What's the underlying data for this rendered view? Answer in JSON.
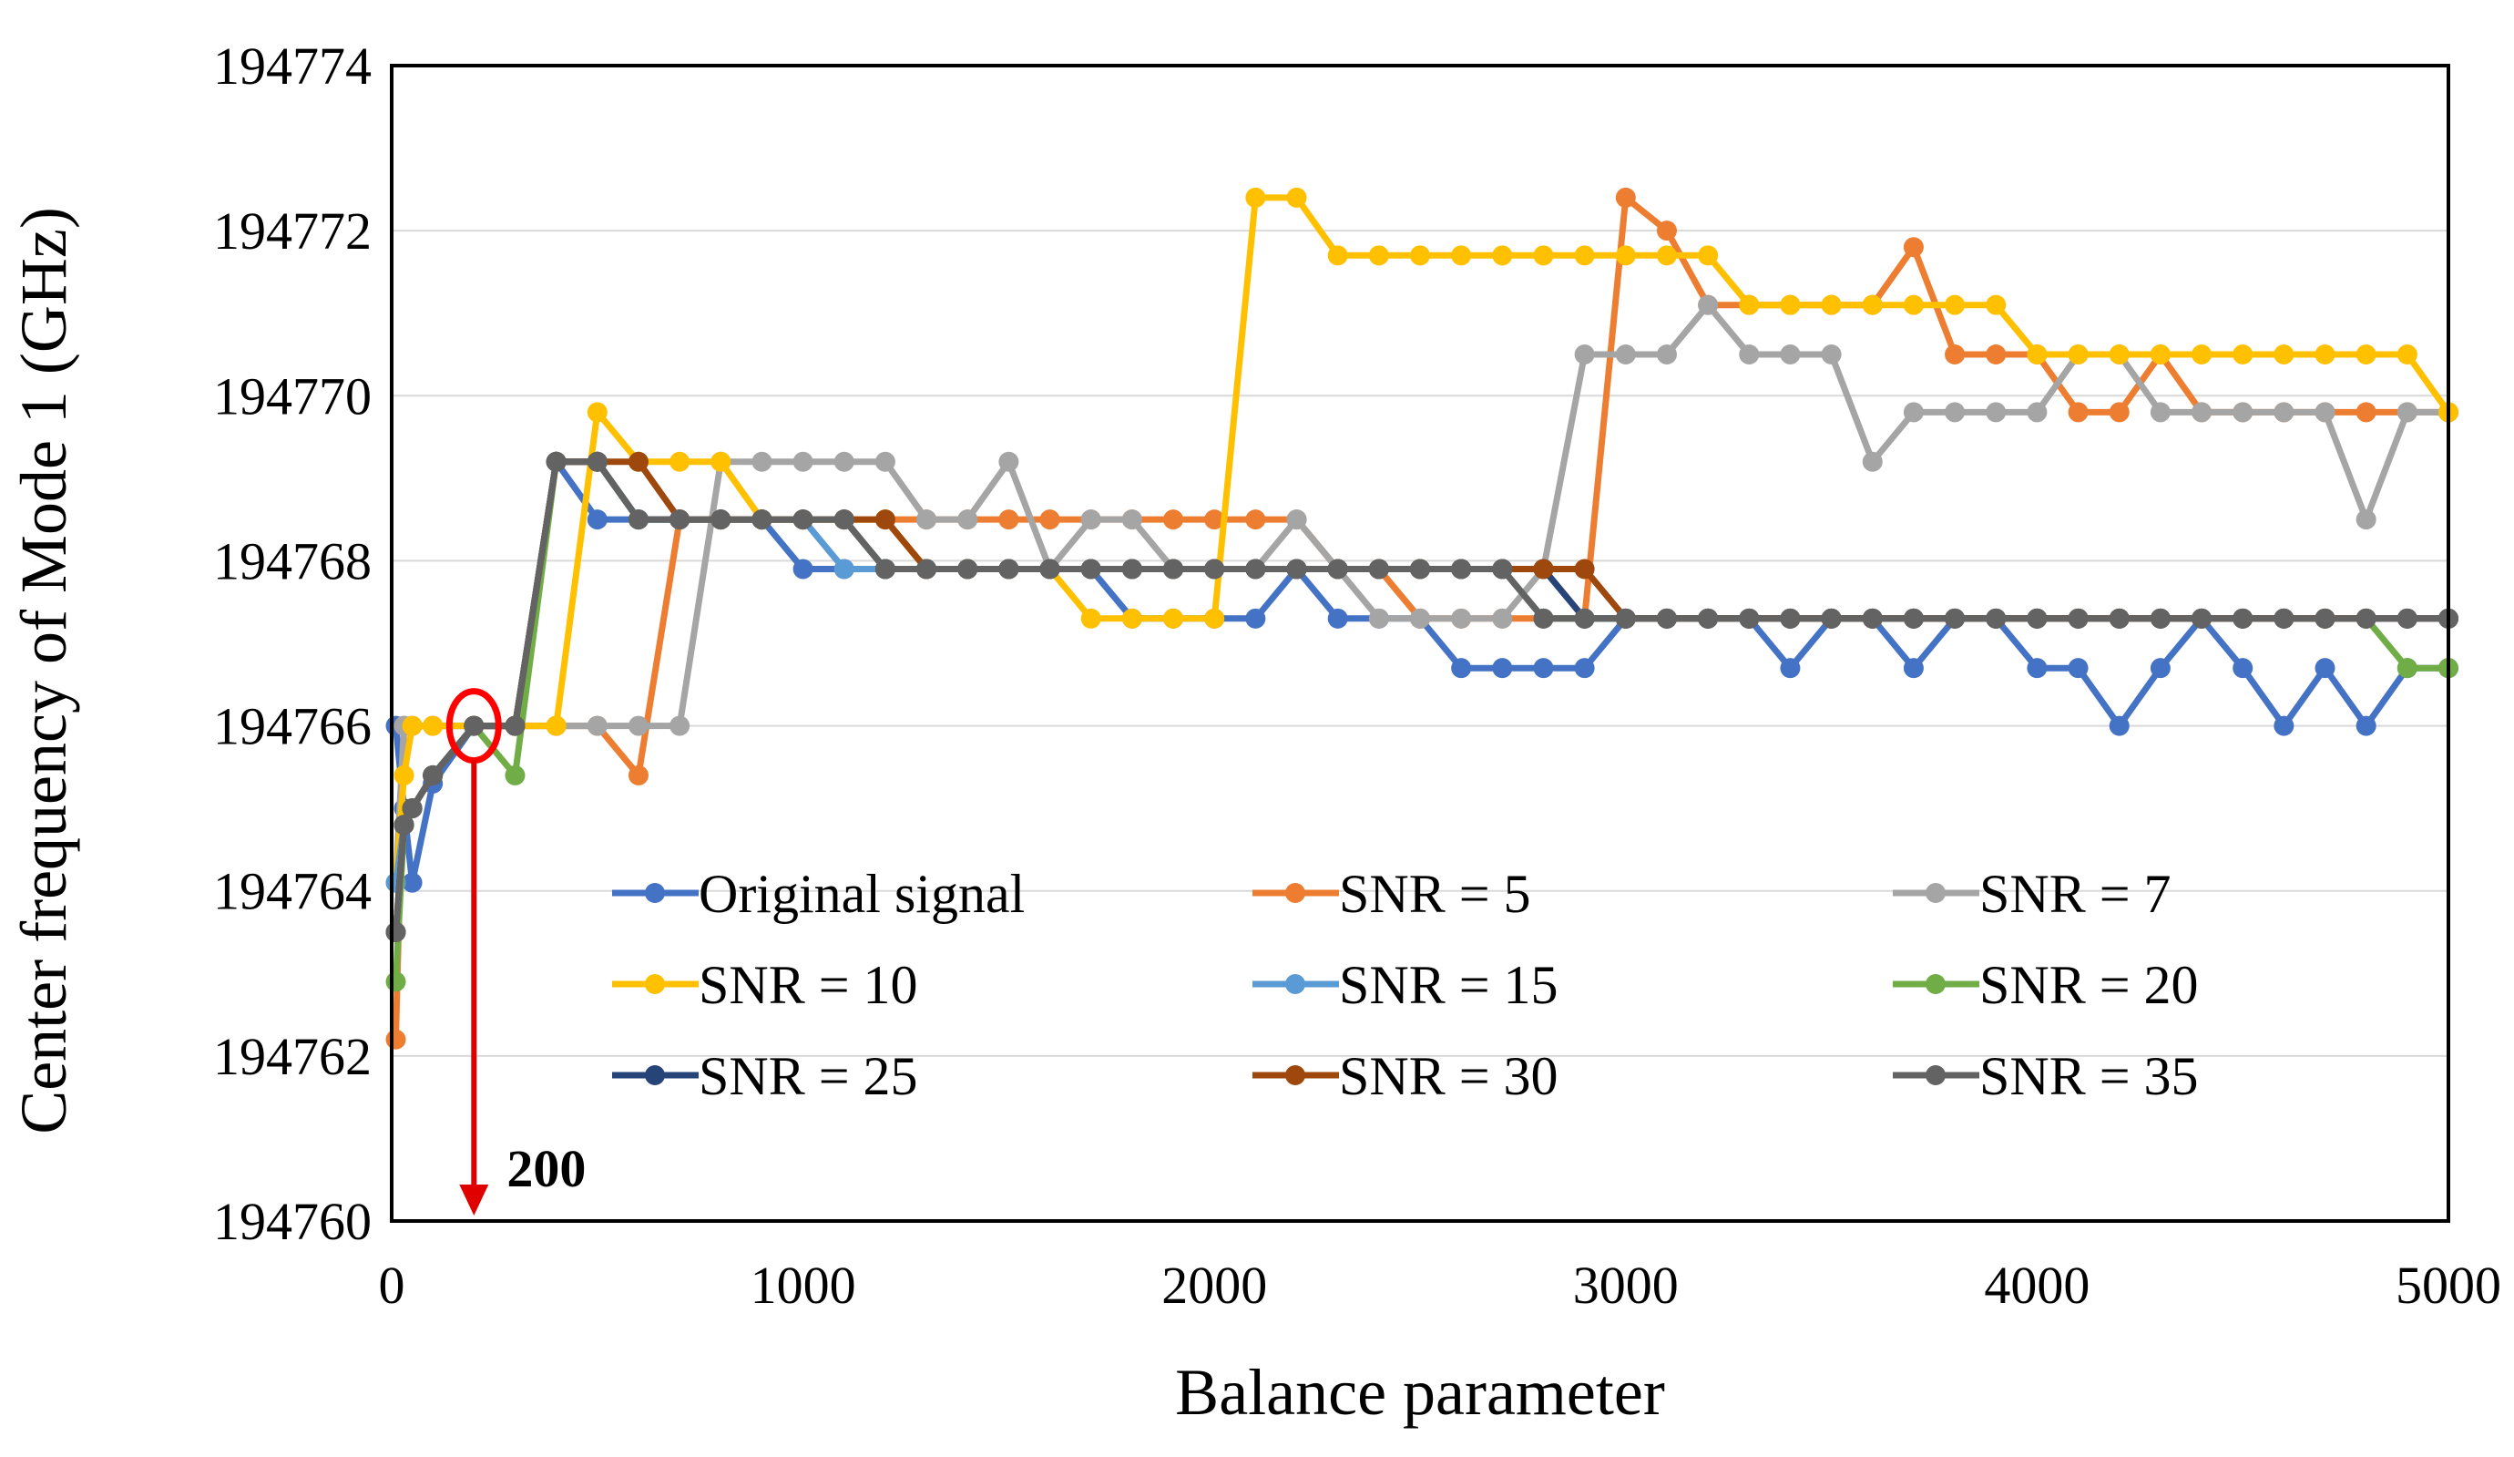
{
  "chart_data": {
    "type": "line",
    "title": "",
    "xlabel": "Balance parameter",
    "ylabel": "Center frequency of Mode 1 (GHz)",
    "xlim": [
      0,
      5000
    ],
    "ylim": [
      194760,
      194774
    ],
    "xticks": [
      0,
      1000,
      2000,
      3000,
      4000,
      5000
    ],
    "yticks": [
      194760,
      194762,
      194764,
      194766,
      194768,
      194770,
      194772,
      194774
    ],
    "grid": "horizontal",
    "legend_position": "inside-lower",
    "annotation": {
      "label": "200",
      "x": 200,
      "y": 194766
    },
    "series": [
      {
        "name": "Original signal",
        "color": "#4472C4",
        "x": [
          10,
          30,
          50,
          100,
          200,
          300,
          400,
          500,
          600,
          700,
          800,
          900,
          1000,
          1100,
          1200,
          1300,
          1400,
          1500,
          1600,
          1700,
          1800,
          1900,
          2000,
          2100,
          2200,
          2300,
          2400,
          2500,
          2600,
          2700,
          2800,
          2900,
          3000,
          3100,
          3200,
          3300,
          3400,
          3500,
          3600,
          3700,
          3800,
          3900,
          4000,
          4100,
          4200,
          4300,
          4400,
          4500,
          4600,
          4700,
          4800,
          4900,
          5000
        ],
        "y": [
          194766.0,
          194765.0,
          194764.1,
          194765.3,
          194766.0,
          194766.0,
          194769.2,
          194768.5,
          194768.5,
          194768.5,
          194768.5,
          194768.5,
          194767.9,
          194767.9,
          194767.9,
          194767.9,
          194767.9,
          194767.9,
          194767.9,
          194767.9,
          194767.3,
          194767.3,
          194767.3,
          194767.3,
          194767.9,
          194767.3,
          194767.3,
          194767.3,
          194766.7,
          194766.7,
          194766.7,
          194766.7,
          194767.3,
          194767.3,
          194767.3,
          194767.3,
          194766.7,
          194767.3,
          194767.3,
          194766.7,
          194767.3,
          194767.3,
          194766.7,
          194766.7,
          194766.0,
          194766.7,
          194767.3,
          194766.7,
          194766.0,
          194766.7,
          194766.0,
          194766.7,
          194766.7
        ]
      },
      {
        "name": "SNR = 5",
        "color": "#ED7D31",
        "x": [
          10,
          30,
          50,
          100,
          200,
          300,
          400,
          500,
          600,
          700,
          800,
          900,
          1000,
          1100,
          1200,
          1300,
          1400,
          1500,
          1600,
          1700,
          1800,
          1900,
          2000,
          2100,
          2200,
          2300,
          2400,
          2500,
          2600,
          2700,
          2800,
          2900,
          3000,
          3100,
          3200,
          3300,
          3400,
          3500,
          3600,
          3700,
          3800,
          3900,
          4000,
          4100,
          4200,
          4300,
          4400,
          4500,
          4600,
          4700,
          4800,
          4900,
          5000
        ],
        "y": [
          194762.2,
          194766.0,
          194766.0,
          194766.0,
          194766.0,
          194766.0,
          194766.0,
          194766.0,
          194765.4,
          194768.5,
          194768.5,
          194768.5,
          194768.5,
          194768.5,
          194768.5,
          194768.5,
          194768.5,
          194768.5,
          194768.5,
          194768.5,
          194768.5,
          194768.5,
          194768.5,
          194768.5,
          194768.5,
          194767.9,
          194767.9,
          194767.3,
          194767.3,
          194767.3,
          194767.3,
          194767.3,
          194772.4,
          194772.0,
          194771.1,
          194771.1,
          194771.1,
          194771.1,
          194771.1,
          194771.8,
          194770.5,
          194770.5,
          194770.5,
          194769.8,
          194769.8,
          194770.5,
          194769.8,
          194769.8,
          194769.8,
          194769.8,
          194769.8,
          194769.8,
          194769.8
        ]
      },
      {
        "name": "SNR = 7",
        "color": "#A5A5A5",
        "x": [
          10,
          30,
          50,
          100,
          200,
          300,
          400,
          500,
          600,
          700,
          800,
          900,
          1000,
          1100,
          1200,
          1300,
          1400,
          1500,
          1600,
          1700,
          1800,
          1900,
          2000,
          2100,
          2200,
          2300,
          2400,
          2500,
          2600,
          2700,
          2800,
          2900,
          3000,
          3100,
          3200,
          3300,
          3400,
          3500,
          3600,
          3700,
          3800,
          3900,
          4000,
          4100,
          4200,
          4300,
          4400,
          4500,
          4600,
          4700,
          4800,
          4900,
          5000
        ],
        "y": [
          194764.1,
          194766.0,
          194766.0,
          194766.0,
          194766.0,
          194766.0,
          194766.0,
          194766.0,
          194766.0,
          194766.0,
          194769.2,
          194769.2,
          194769.2,
          194769.2,
          194769.2,
          194768.5,
          194768.5,
          194769.2,
          194767.9,
          194768.5,
          194768.5,
          194767.9,
          194767.9,
          194767.9,
          194768.5,
          194767.9,
          194767.3,
          194767.3,
          194767.3,
          194767.3,
          194767.9,
          194770.5,
          194770.5,
          194770.5,
          194771.1,
          194770.5,
          194770.5,
          194770.5,
          194769.2,
          194769.8,
          194769.8,
          194769.8,
          194769.8,
          194770.5,
          194770.5,
          194769.8,
          194769.8,
          194769.8,
          194769.8,
          194769.8,
          194768.5,
          194769.8,
          194769.8
        ]
      },
      {
        "name": "SNR = 10",
        "color": "#FFC000",
        "x": [
          10,
          30,
          50,
          100,
          200,
          300,
          400,
          500,
          600,
          700,
          800,
          900,
          1000,
          1100,
          1200,
          1300,
          1400,
          1500,
          1600,
          1700,
          1800,
          1900,
          2000,
          2100,
          2200,
          2300,
          2400,
          2500,
          2600,
          2700,
          2800,
          2900,
          3000,
          3100,
          3200,
          3300,
          3400,
          3500,
          3600,
          3700,
          3800,
          3900,
          4000,
          4100,
          4200,
          4300,
          4400,
          4500,
          4600,
          4700,
          4800,
          4900,
          5000
        ],
        "y": [
          194764.1,
          194765.4,
          194766.0,
          194766.0,
          194766.0,
          194766.0,
          194766.0,
          194769.8,
          194769.2,
          194769.2,
          194769.2,
          194768.5,
          194768.5,
          194768.5,
          194768.5,
          194767.9,
          194767.9,
          194767.9,
          194767.9,
          194767.3,
          194767.3,
          194767.3,
          194767.3,
          194772.4,
          194772.4,
          194771.7,
          194771.7,
          194771.7,
          194771.7,
          194771.7,
          194771.7,
          194771.7,
          194771.7,
          194771.7,
          194771.7,
          194771.1,
          194771.1,
          194771.1,
          194771.1,
          194771.1,
          194771.1,
          194771.1,
          194770.5,
          194770.5,
          194770.5,
          194770.5,
          194770.5,
          194770.5,
          194770.5,
          194770.5,
          194770.5,
          194770.5,
          194769.8
        ]
      },
      {
        "name": "SNR = 15",
        "color": "#5B9BD5",
        "x": [
          10,
          30,
          50,
          100,
          200,
          300,
          400,
          500,
          600,
          700,
          800,
          900,
          1000,
          1100,
          1200,
          1300,
          1400,
          1500,
          1600,
          1700,
          1800,
          1900,
          2000,
          2100,
          2200,
          2300,
          2400,
          2500,
          2600,
          2700,
          2800,
          2900,
          3000,
          3100,
          3200,
          3300,
          3400,
          3500,
          3600,
          3700,
          3800,
          3900,
          4000,
          4100,
          4200,
          4300,
          4400,
          4500,
          4600,
          4700,
          4800,
          4900,
          5000
        ],
        "y": [
          194764.1,
          194764.8,
          194765.0,
          194765.4,
          194766.0,
          194766.0,
          194769.2,
          194769.2,
          194768.5,
          194768.5,
          194768.5,
          194768.5,
          194768.5,
          194767.9,
          194767.9,
          194767.9,
          194767.9,
          194767.9,
          194767.9,
          194767.9,
          194767.9,
          194767.9,
          194767.9,
          194767.9,
          194767.9,
          194767.9,
          194767.9,
          194767.9,
          194767.9,
          194767.9,
          194767.3,
          194767.3,
          194767.3,
          194767.3,
          194767.3,
          194767.3,
          194767.3,
          194767.3,
          194767.3,
          194767.3,
          194767.3,
          194767.3,
          194767.3,
          194767.3,
          194767.3,
          194767.3,
          194767.3,
          194767.3,
          194767.3,
          194767.3,
          194767.3,
          194767.3,
          194767.3
        ]
      },
      {
        "name": "SNR = 20",
        "color": "#70AD47",
        "x": [
          10,
          30,
          50,
          100,
          200,
          300,
          400,
          500,
          600,
          700,
          800,
          900,
          1000,
          1100,
          1200,
          1300,
          1400,
          1500,
          1600,
          1700,
          1800,
          1900,
          2000,
          2100,
          2200,
          2300,
          2400,
          2500,
          2600,
          2700,
          2800,
          2900,
          3000,
          3100,
          3200,
          3300,
          3400,
          3500,
          3600,
          3700,
          3800,
          3900,
          4000,
          4100,
          4200,
          4300,
          4400,
          4500,
          4600,
          4700,
          4800,
          4900,
          5000
        ],
        "y": [
          194762.9,
          194764.8,
          194765.0,
          194765.4,
          194766.0,
          194765.4,
          194769.2,
          194769.2,
          194768.5,
          194768.5,
          194768.5,
          194768.5,
          194768.5,
          194768.5,
          194767.9,
          194767.9,
          194767.9,
          194767.9,
          194767.9,
          194767.9,
          194767.9,
          194767.9,
          194767.9,
          194767.9,
          194767.9,
          194767.9,
          194767.9,
          194767.9,
          194767.9,
          194767.9,
          194767.3,
          194767.3,
          194767.3,
          194767.3,
          194767.3,
          194767.3,
          194767.3,
          194767.3,
          194767.3,
          194767.3,
          194767.3,
          194767.3,
          194767.3,
          194767.3,
          194767.3,
          194767.3,
          194767.3,
          194767.3,
          194767.3,
          194767.3,
          194767.3,
          194766.7,
          194766.7
        ]
      },
      {
        "name": "SNR = 25",
        "color": "#264478",
        "x": [
          10,
          30,
          50,
          100,
          200,
          300,
          400,
          500,
          600,
          700,
          800,
          900,
          1000,
          1100,
          1200,
          1300,
          1400,
          1500,
          1600,
          1700,
          1800,
          1900,
          2000,
          2100,
          2200,
          2300,
          2400,
          2500,
          2600,
          2700,
          2800,
          2900,
          3000,
          3100,
          3200,
          3300,
          3400,
          3500,
          3600,
          3700,
          3800,
          3900,
          4000,
          4100,
          4200,
          4300,
          4400,
          4500,
          4600,
          4700,
          4800,
          4900,
          5000
        ],
        "y": [
          194763.5,
          194764.8,
          194765.0,
          194765.4,
          194766.0,
          194766.0,
          194769.2,
          194769.2,
          194768.5,
          194768.5,
          194768.5,
          194768.5,
          194768.5,
          194768.5,
          194767.9,
          194767.9,
          194767.9,
          194767.9,
          194767.9,
          194767.9,
          194767.9,
          194767.9,
          194767.9,
          194767.9,
          194767.9,
          194767.9,
          194767.9,
          194767.9,
          194767.9,
          194767.9,
          194767.9,
          194767.3,
          194767.3,
          194767.3,
          194767.3,
          194767.3,
          194767.3,
          194767.3,
          194767.3,
          194767.3,
          194767.3,
          194767.3,
          194767.3,
          194767.3,
          194767.3,
          194767.3,
          194767.3,
          194767.3,
          194767.3,
          194767.3,
          194767.3,
          194767.3,
          194767.3
        ]
      },
      {
        "name": "SNR = 30",
        "color": "#9E480E",
        "x": [
          10,
          30,
          50,
          100,
          200,
          300,
          400,
          500,
          600,
          700,
          800,
          900,
          1000,
          1100,
          1200,
          1300,
          1400,
          1500,
          1600,
          1700,
          1800,
          1900,
          2000,
          2100,
          2200,
          2300,
          2400,
          2500,
          2600,
          2700,
          2800,
          2900,
          3000,
          3100,
          3200,
          3300,
          3400,
          3500,
          3600,
          3700,
          3800,
          3900,
          4000,
          4100,
          4200,
          4300,
          4400,
          4500,
          4600,
          4700,
          4800,
          4900,
          5000
        ],
        "y": [
          194763.5,
          194764.8,
          194765.0,
          194765.4,
          194766.0,
          194766.0,
          194769.2,
          194769.2,
          194769.2,
          194768.5,
          194768.5,
          194768.5,
          194768.5,
          194768.5,
          194768.5,
          194767.9,
          194767.9,
          194767.9,
          194767.9,
          194767.9,
          194767.9,
          194767.9,
          194767.9,
          194767.9,
          194767.9,
          194767.9,
          194767.9,
          194767.9,
          194767.9,
          194767.9,
          194767.9,
          194767.9,
          194767.3,
          194767.3,
          194767.3,
          194767.3,
          194767.3,
          194767.3,
          194767.3,
          194767.3,
          194767.3,
          194767.3,
          194767.3,
          194767.3,
          194767.3,
          194767.3,
          194767.3,
          194767.3,
          194767.3,
          194767.3,
          194767.3,
          194767.3,
          194767.3
        ]
      },
      {
        "name": "SNR = 35",
        "color": "#636363",
        "x": [
          10,
          30,
          50,
          100,
          200,
          300,
          400,
          500,
          600,
          700,
          800,
          900,
          1000,
          1100,
          1200,
          1300,
          1400,
          1500,
          1600,
          1700,
          1800,
          1900,
          2000,
          2100,
          2200,
          2300,
          2400,
          2500,
          2600,
          2700,
          2800,
          2900,
          3000,
          3100,
          3200,
          3300,
          3400,
          3500,
          3600,
          3700,
          3800,
          3900,
          4000,
          4100,
          4200,
          4300,
          4400,
          4500,
          4600,
          4700,
          4800,
          4900,
          5000
        ],
        "y": [
          194763.5,
          194764.8,
          194765.0,
          194765.4,
          194766.0,
          194766.0,
          194769.2,
          194769.2,
          194768.5,
          194768.5,
          194768.5,
          194768.5,
          194768.5,
          194768.5,
          194767.9,
          194767.9,
          194767.9,
          194767.9,
          194767.9,
          194767.9,
          194767.9,
          194767.9,
          194767.9,
          194767.9,
          194767.9,
          194767.9,
          194767.9,
          194767.9,
          194767.9,
          194767.9,
          194767.3,
          194767.3,
          194767.3,
          194767.3,
          194767.3,
          194767.3,
          194767.3,
          194767.3,
          194767.3,
          194767.3,
          194767.3,
          194767.3,
          194767.3,
          194767.3,
          194767.3,
          194767.3,
          194767.3,
          194767.3,
          194767.3,
          194767.3,
          194767.3,
          194767.3,
          194767.3
        ]
      }
    ]
  }
}
